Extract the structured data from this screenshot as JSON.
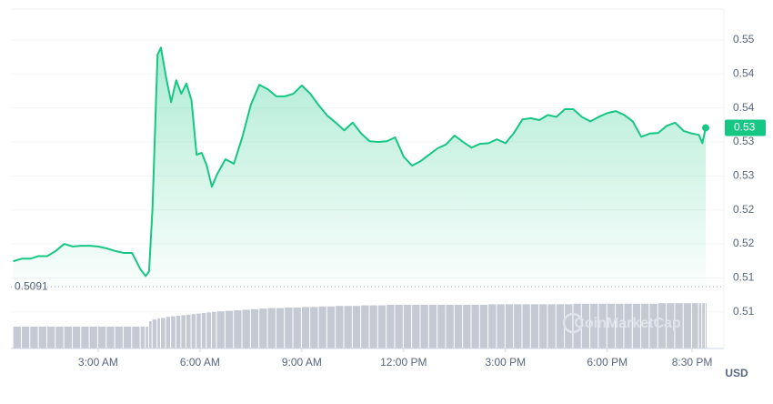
{
  "chart_data": {
    "type": "line",
    "color": "#16c784",
    "volume_color": "#c5c9d3",
    "currency": "USD",
    "watermark": "CoinMarketCap",
    "current_price_label": "0.53",
    "reference_line": {
      "value": 0.5091,
      "label": "0.5091"
    },
    "x": [
      0.5,
      0.75,
      1.0,
      1.25,
      1.5,
      1.75,
      2.0,
      2.25,
      2.5,
      2.75,
      3.0,
      3.25,
      3.5,
      3.75,
      4.0,
      4.25,
      4.4,
      4.5,
      4.6,
      4.75,
      4.85,
      5.0,
      5.15,
      5.3,
      5.45,
      5.6,
      5.75,
      5.9,
      6.05,
      6.2,
      6.35,
      6.5,
      6.75,
      7.0,
      7.25,
      7.5,
      7.75,
      8.0,
      8.25,
      8.5,
      8.75,
      9.0,
      9.25,
      9.5,
      9.75,
      10.0,
      10.25,
      10.5,
      10.75,
      11.0,
      11.25,
      11.5,
      11.75,
      12.0,
      12.25,
      12.5,
      12.75,
      13.0,
      13.25,
      13.5,
      13.75,
      14.0,
      14.25,
      14.5,
      14.75,
      15.0,
      15.25,
      15.5,
      15.75,
      16.0,
      16.25,
      16.5,
      16.75,
      17.0,
      17.25,
      17.5,
      17.75,
      18.0,
      18.25,
      18.5,
      18.75,
      19.0,
      19.25,
      19.5,
      19.75,
      20.0,
      20.25,
      20.5,
      20.7,
      20.8,
      20.9
    ],
    "values": [
      0.5131,
      0.5135,
      0.5135,
      0.5139,
      0.5139,
      0.5147,
      0.5158,
      0.5154,
      0.5155,
      0.5155,
      0.5154,
      0.5151,
      0.5147,
      0.5144,
      0.5144,
      0.5118,
      0.5108,
      0.5115,
      0.5212,
      0.5453,
      0.5464,
      0.5418,
      0.5379,
      0.5413,
      0.5392,
      0.5408,
      0.5382,
      0.5297,
      0.53,
      0.528,
      0.5247,
      0.5266,
      0.529,
      0.5283,
      0.5325,
      0.5375,
      0.5406,
      0.5399,
      0.5388,
      0.5388,
      0.5392,
      0.5405,
      0.5392,
      0.5374,
      0.5358,
      0.5347,
      0.5335,
      0.5347,
      0.533,
      0.5318,
      0.5317,
      0.5318,
      0.5324,
      0.5294,
      0.528,
      0.5287,
      0.5297,
      0.5307,
      0.5313,
      0.5327,
      0.5317,
      0.5308,
      0.5314,
      0.5315,
      0.5321,
      0.5315,
      0.5331,
      0.5352,
      0.5354,
      0.5351,
      0.5359,
      0.5356,
      0.5368,
      0.5368,
      0.5356,
      0.5349,
      0.5356,
      0.5362,
      0.5365,
      0.5359,
      0.5349,
      0.5325,
      0.533,
      0.5331,
      0.5342,
      0.5347,
      0.5334,
      0.533,
      0.5328,
      0.5315,
      0.5339
    ],
    "volume": [
      40,
      40,
      40,
      40,
      40,
      40,
      40,
      40,
      40,
      40,
      40,
      40,
      40,
      40,
      40,
      40,
      40,
      50,
      53,
      55,
      56,
      58,
      59,
      60,
      61,
      62,
      63,
      64,
      65,
      66,
      67,
      68,
      69,
      70,
      71,
      72,
      73,
      74,
      74,
      75,
      75,
      76,
      76,
      77,
      77,
      78,
      78,
      78,
      79,
      79,
      79,
      80,
      80,
      80,
      80,
      80,
      80,
      80,
      80,
      80,
      80,
      80,
      80,
      81,
      81,
      81,
      81,
      81,
      81,
      81,
      81,
      81,
      81,
      82,
      82,
      82,
      82,
      82,
      82,
      82,
      82,
      82,
      82,
      83,
      83,
      83,
      83,
      83,
      83,
      83,
      83
    ],
    "volume_lim": [
      0,
      100
    ],
    "xlim": [
      0.43,
      20.9
    ],
    "xticks": [
      {
        "value": 3,
        "label": "3:00 AM"
      },
      {
        "value": 6,
        "label": "6:00 AM"
      },
      {
        "value": 9,
        "label": "9:00 AM"
      },
      {
        "value": 12,
        "label": "12:00 PM"
      },
      {
        "value": 15,
        "label": "3:00 PM"
      },
      {
        "value": 18,
        "label": "6:00 PM"
      },
      {
        "value": 20.5,
        "label": "8:30 PM"
      }
    ],
    "ylim": [
      0.4995,
      0.5524
    ],
    "yticks": [
      {
        "value": 0.5052,
        "label": "0.51"
      },
      {
        "value": 0.5105,
        "label": "0.51"
      },
      {
        "value": 0.5158,
        "label": "0.52"
      },
      {
        "value": 0.5211,
        "label": "0.52"
      },
      {
        "value": 0.5264,
        "label": "0.53"
      },
      {
        "value": 0.5317,
        "label": "0.53"
      },
      {
        "value": 0.537,
        "label": "0.54"
      },
      {
        "value": 0.5423,
        "label": "0.54"
      },
      {
        "value": 0.5476,
        "label": "0.55"
      }
    ],
    "grid": true
  }
}
